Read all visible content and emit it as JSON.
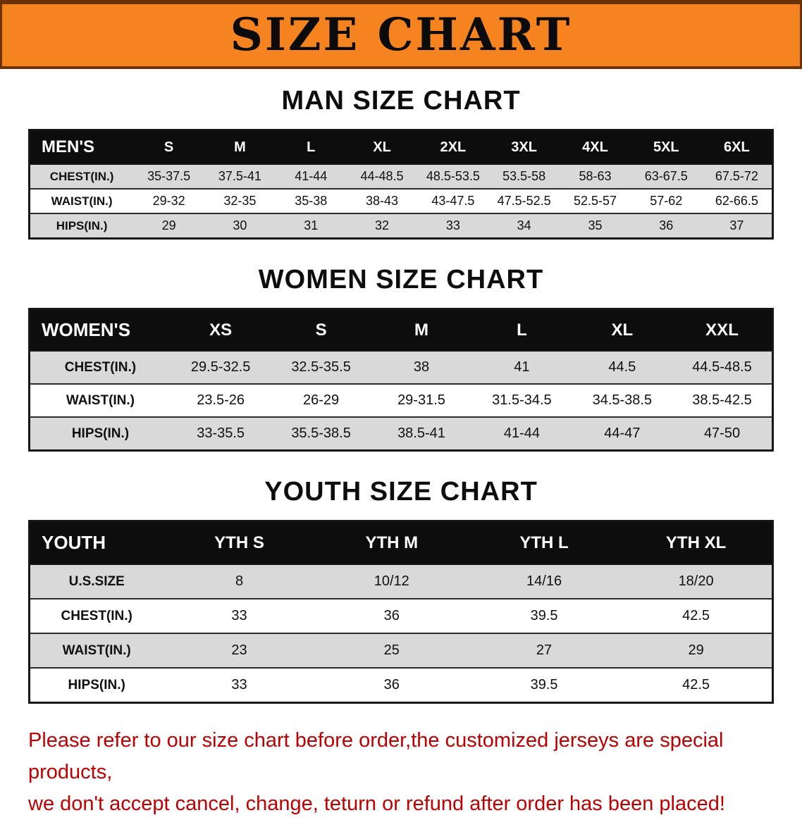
{
  "banner": {
    "title": "SIZE CHART"
  },
  "sections": [
    {
      "heading": "MAN SIZE CHART",
      "table": {
        "header": [
          "MEN'S",
          "S",
          "M",
          "L",
          "XL",
          "2XL",
          "3XL",
          "4XL",
          "5XL",
          "6XL"
        ],
        "rows": [
          {
            "label": "CHEST(IN.)",
            "values": [
              "35-37.5",
              "37.5-41",
              "41-44",
              "44-48.5",
              "48.5-53.5",
              "53.5-58",
              "58-63",
              "63-67.5",
              "67.5-72"
            ]
          },
          {
            "label": "WAIST(IN.)",
            "values": [
              "29-32",
              "32-35",
              "35-38",
              "38-43",
              "43-47.5",
              "47.5-52.5",
              "52.5-57",
              "57-62",
              "62-66.5"
            ]
          },
          {
            "label": "HIPS(IN.)",
            "values": [
              "29",
              "30",
              "31",
              "32",
              "33",
              "34",
              "35",
              "36",
              "37"
            ]
          }
        ]
      }
    },
    {
      "heading": "WOMEN SIZE CHART",
      "table": {
        "header": [
          "WOMEN'S",
          "XS",
          "S",
          "M",
          "L",
          "XL",
          "XXL"
        ],
        "rows": [
          {
            "label": "CHEST(IN.)",
            "values": [
              "29.5-32.5",
              "32.5-35.5",
              "38",
              "41",
              "44.5",
              "44.5-48.5"
            ]
          },
          {
            "label": "WAIST(IN.)",
            "values": [
              "23.5-26",
              "26-29",
              "29-31.5",
              "31.5-34.5",
              "34.5-38.5",
              "38.5-42.5"
            ]
          },
          {
            "label": "HIPS(IN.)",
            "values": [
              "33-35.5",
              "35.5-38.5",
              "38.5-41",
              "41-44",
              "44-47",
              "47-50"
            ]
          }
        ]
      }
    },
    {
      "heading": "YOUTH SIZE CHART",
      "table": {
        "header": [
          "YOUTH",
          "YTH S",
          "YTH M",
          "YTH L",
          "YTH XL"
        ],
        "rows": [
          {
            "label": "U.S.SIZE",
            "values": [
              "8",
              "10/12",
              "14/16",
              "18/20"
            ]
          },
          {
            "label": "CHEST(IN.)",
            "values": [
              "33",
              "36",
              "39.5",
              "42.5"
            ]
          },
          {
            "label": "WAIST(IN.)",
            "values": [
              "23",
              "25",
              "27",
              "29"
            ]
          },
          {
            "label": "HIPS(IN.)",
            "values": [
              "33",
              "36",
              "39.5",
              "42.5"
            ]
          }
        ]
      }
    }
  ],
  "footer": {
    "line1": "Please refer to our size chart before order,the customized jerseys are special products,",
    "line2": "we don't accept cancel, change, teturn or refund after order has been placed!"
  },
  "colors": {
    "banner_bg": "#f5831f",
    "banner_edge": "#6b3305",
    "header_bg": "#0d0d0d",
    "stripe": "#d9d9d9",
    "footer_text": "#c00000"
  }
}
